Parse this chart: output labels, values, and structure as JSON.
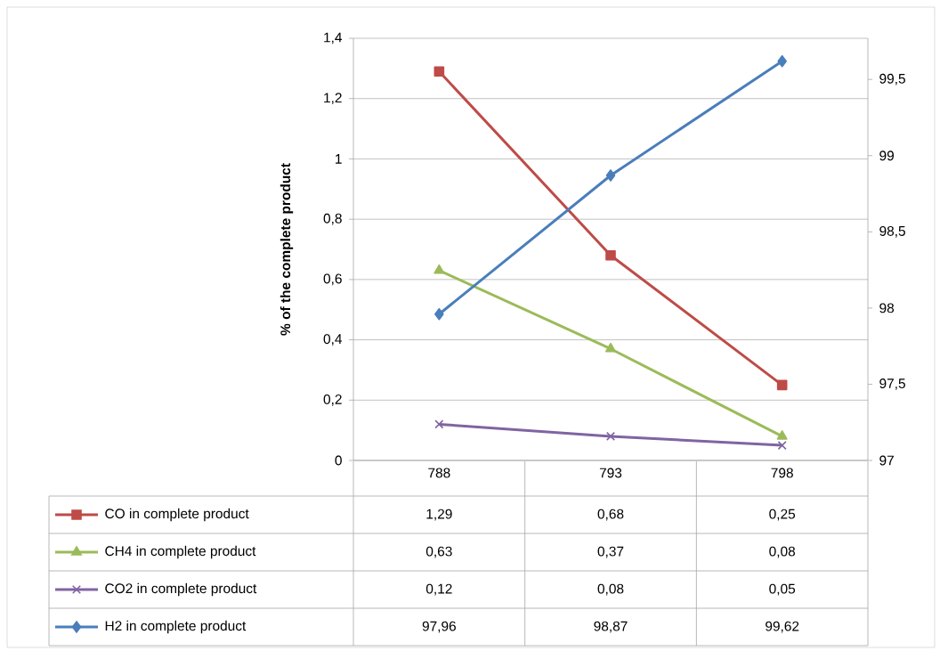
{
  "chart_data": {
    "type": "line",
    "ylabel": "% of the complete product",
    "categories": [
      "788",
      "793",
      "798"
    ],
    "series": [
      {
        "name": "CO in complete product",
        "color": "#be4b48",
        "marker": "square",
        "values": [
          1.29,
          0.68,
          0.25
        ],
        "value_labels": [
          "1,29",
          "0,68",
          "0,25"
        ]
      },
      {
        "name": "CH4 in complete product",
        "color": "#9bbb59",
        "marker": "triangle",
        "values": [
          0.63,
          0.37,
          0.08
        ],
        "value_labels": [
          "0,63",
          "0,37",
          "0,08"
        ]
      },
      {
        "name": "CO2 in complete product",
        "color": "#8064a2",
        "marker": "cross",
        "values": [
          0.12,
          0.08,
          0.05
        ],
        "value_labels": [
          "0,12",
          "0,08",
          "0,05"
        ]
      },
      {
        "name": "H2 in complete product",
        "color": "#4a7ebb",
        "marker": "diamond",
        "axis": "y2",
        "values": [
          97.96,
          98.87,
          99.62
        ],
        "value_labels": [
          "97,96",
          "98,87",
          "99,62"
        ]
      }
    ],
    "ylim": [
      0,
      1.4
    ],
    "yticks": [
      0,
      {
        "value": 0.2,
        "label": "0,2"
      },
      {
        "value": 0.4,
        "label": "0,4"
      },
      {
        "value": 0.6,
        "label": "0,6"
      },
      {
        "value": 0.8,
        "label": "0,8"
      },
      1,
      {
        "value": 1.2,
        "label": "1,2"
      },
      {
        "value": 1.4,
        "label": "1,4"
      }
    ],
    "y2lim": [
      97,
      99.77
    ],
    "y2ticks": [
      97,
      {
        "value": 97.5,
        "label": "97,5"
      },
      98,
      {
        "value": 98.5,
        "label": "98,5"
      },
      99,
      {
        "value": 99.5,
        "label": "99,5"
      }
    ],
    "grid": "y",
    "legend": "bottom"
  }
}
